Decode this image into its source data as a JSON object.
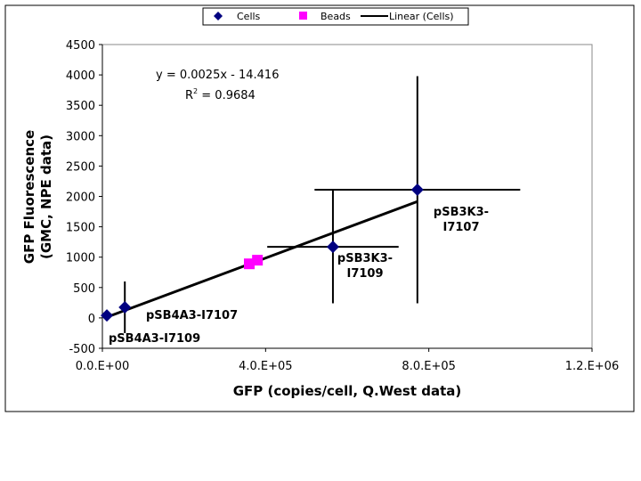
{
  "chart_data": {
    "type": "scatter",
    "xlabel": "GFP (copies/cell, Q.West data)",
    "ylabel_lines": [
      "GFP Fluorescence",
      "(GMC, NPE data)"
    ],
    "xlim": [
      0,
      1200000
    ],
    "ylim": [
      -500,
      4500
    ],
    "xticks": [
      0,
      400000,
      800000,
      1200000
    ],
    "xtick_labels": [
      "0.0.E+00",
      "4.0.E+05",
      "8.0.E+05",
      "1.2.E+06"
    ],
    "yticks": [
      -500,
      0,
      500,
      1000,
      1500,
      2000,
      2500,
      3000,
      3500,
      4000,
      4500
    ],
    "ytick_labels": [
      "-500",
      "0",
      "500",
      "1000",
      "1500",
      "2000",
      "2500",
      "3000",
      "3500",
      "4000",
      "4500"
    ],
    "legend": {
      "placement": "top-center",
      "entries": [
        "Cells",
        "Beads",
        "Linear (Cells)"
      ]
    },
    "series": [
      {
        "name": "Cells",
        "marker": "diamond",
        "color": "#000080",
        "points": [
          {
            "x": 11000,
            "y": 40,
            "label": "pSB4A3-I7109",
            "xerr": 0,
            "yerr": 0
          },
          {
            "x": 55000,
            "y": 175,
            "label": "pSB4A3-I7107",
            "xerr": 0,
            "yerr": 425
          },
          {
            "x": 565000,
            "y": 1170,
            "label": "pSB3K3-I7109",
            "xerr": 161000,
            "yerr": 930
          },
          {
            "x": 772000,
            "y": 2110,
            "label": "pSB3K3-I7107",
            "xerr": 252000,
            "yerr": 1870
          }
        ]
      },
      {
        "name": "Beads",
        "marker": "square",
        "color": "#ff00ff",
        "points": [
          {
            "x": 360000,
            "y": 890
          },
          {
            "x": 380000,
            "y": 950
          }
        ]
      }
    ],
    "trendline": {
      "name": "Linear (Cells)",
      "slope": 0.0025,
      "intercept": -14.416,
      "xrange": [
        11000,
        772000
      ],
      "equation": "y = 0.0025x - 14.416",
      "r2_label": "R",
      "r2_value": " = 0.9684",
      "r2_sup": "2"
    }
  }
}
